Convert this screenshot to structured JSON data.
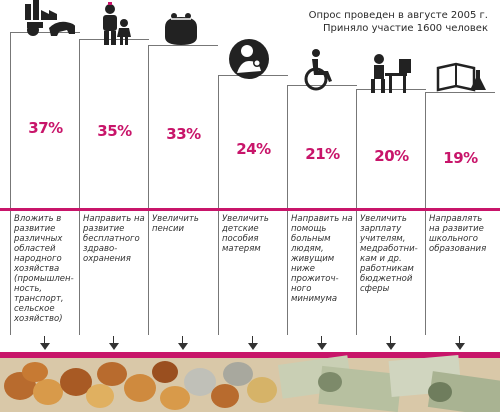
{
  "survey_note": {
    "line1": "Опрос проведен в августе 2005 г.",
    "line2": "Приняло участие 1600 человек"
  },
  "chart_data": {
    "type": "bar",
    "unit": "%",
    "values": [
      37,
      35,
      33,
      24,
      21,
      20,
      19
    ],
    "value_labels": [
      "37%",
      "35%",
      "33%",
      "24%",
      "21%",
      "20%",
      "19%"
    ],
    "categories": [
      "Вложить в развитие различных областей народного хозяйства (промышлен-ность, транспорт, сельское хозяйство)",
      "Направить на развитие бесплатного здраво-охранения",
      "Увеличить пенсии",
      "Увеличить детские пособия матерям",
      "Направить на помощь больным людям, живущим ниже прожиточ-ного минимума",
      "Увеличить зарплату учителям, медработни-кам и др. работникам бюджетной сферы",
      "Направлять на развитие школьного образования"
    ],
    "icons": [
      "factory-tractor-cow-icon",
      "doctor-child-icon",
      "coin-purse-icon",
      "mother-baby-icon",
      "wheelchair-icon",
      "teacher-desk-icon",
      "book-flask-icon"
    ],
    "accent_color": "#c8156a"
  }
}
